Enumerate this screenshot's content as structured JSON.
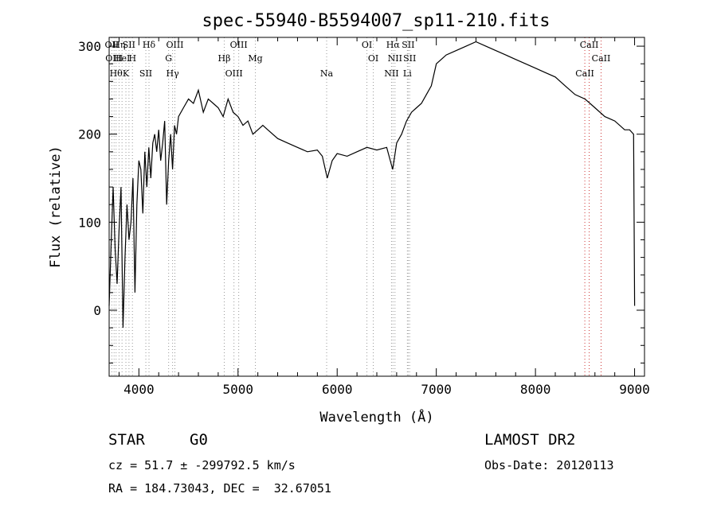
{
  "chart_data": {
    "type": "line",
    "title": "spec-55940-B5594007_sp11-210.fits",
    "xlabel": "Wavelength (Å)",
    "ylabel": "Flux (relative)",
    "xlim": [
      3700,
      9100
    ],
    "ylim": [
      -75,
      310
    ],
    "xticks": [
      4000,
      5000,
      6000,
      7000,
      8000,
      9000
    ],
    "yticks": [
      0,
      100,
      200,
      300
    ],
    "grid": false,
    "series": [
      {
        "x": [
          3700,
          3720,
          3740,
          3760,
          3780,
          3800,
          3820,
          3840,
          3860,
          3880,
          3900,
          3920,
          3940,
          3960,
          3980,
          4000,
          4020,
          4040,
          4060,
          4080,
          4100,
          4120,
          4140,
          4160,
          4180,
          4200,
          4220,
          4240,
          4260,
          4280,
          4300,
          4320,
          4340,
          4360,
          4380,
          4400,
          4450,
          4500,
          4550,
          4600,
          4650,
          4700,
          4750,
          4800,
          4850,
          4900,
          4950,
          5000,
          5050,
          5100,
          5150,
          5200,
          5250,
          5300,
          5400,
          5500,
          5600,
          5700,
          5800,
          5850,
          5900,
          5950,
          6000,
          6100,
          6200,
          6300,
          6400,
          6500,
          6560,
          6600,
          6650,
          6700,
          6750,
          6800,
          6850,
          6900,
          6950,
          7000,
          7050,
          7100,
          7200,
          7300,
          7400,
          7500,
          7600,
          7700,
          7800,
          7900,
          8000,
          8100,
          8200,
          8300,
          8400,
          8500,
          8550,
          8600,
          8700,
          8800,
          8900,
          8950,
          8990,
          9000
        ],
        "values": [
          5,
          75,
          140,
          70,
          30,
          90,
          140,
          -20,
          60,
          120,
          80,
          100,
          150,
          20,
          120,
          170,
          160,
          110,
          180,
          140,
          185,
          150,
          190,
          200,
          180,
          205,
          170,
          190,
          215,
          120,
          170,
          200,
          160,
          210,
          200,
          220,
          230,
          240,
          235,
          250,
          225,
          240,
          235,
          230,
          220,
          240,
          225,
          220,
          210,
          215,
          200,
          205,
          210,
          205,
          195,
          190,
          185,
          180,
          182,
          175,
          150,
          170,
          178,
          175,
          180,
          185,
          182,
          185,
          160,
          190,
          200,
          215,
          225,
          230,
          235,
          245,
          255,
          280,
          285,
          290,
          295,
          300,
          305,
          300,
          295,
          290,
          285,
          280,
          275,
          270,
          265,
          255,
          245,
          240,
          235,
          230,
          220,
          215,
          205,
          205,
          200,
          5
        ]
      }
    ],
    "spectral_lines": [
      {
        "wavelength": 3727,
        "label": "OII",
        "color": "#999999"
      },
      {
        "wavelength": 3750,
        "label": "OIII",
        "color": "#999999"
      },
      {
        "wavelength": 3770,
        "label": "Hθ",
        "color": "#999999"
      },
      {
        "wavelength": 3800,
        "label": "Hη",
        "color": "#999999"
      },
      {
        "wavelength": 3830,
        "label": "HeI",
        "color": "#999999"
      },
      {
        "wavelength": 3869,
        "label": "K",
        "color": "#999999"
      },
      {
        "wavelength": 3900,
        "label": "SII",
        "color": "#999999"
      },
      {
        "wavelength": 3935,
        "label": "H",
        "color": "#999999"
      },
      {
        "wavelength": 4070,
        "label": "SII",
        "color": "#999999"
      },
      {
        "wavelength": 4102,
        "label": "Hδ",
        "color": "#999999"
      },
      {
        "wavelength": 4300,
        "label": "G",
        "color": "#999999"
      },
      {
        "wavelength": 4340,
        "label": "Hγ",
        "color": "#999999"
      },
      {
        "wavelength": 4363,
        "label": "OIII",
        "color": "#999999"
      },
      {
        "wavelength": 4861,
        "label": "Hβ",
        "color": "#999999"
      },
      {
        "wavelength": 4959,
        "label": "OIII",
        "color": "#999999"
      },
      {
        "wavelength": 5007,
        "label": "OIII",
        "color": "#999999"
      },
      {
        "wavelength": 5175,
        "label": "Mg",
        "color": "#999999"
      },
      {
        "wavelength": 5894,
        "label": "Na",
        "color": "#999999"
      },
      {
        "wavelength": 6300,
        "label": "OI",
        "color": "#999999"
      },
      {
        "wavelength": 6364,
        "label": "OI",
        "color": "#999999"
      },
      {
        "wavelength": 6548,
        "label": "NII",
        "color": "#999999"
      },
      {
        "wavelength": 6563,
        "label": "Hα",
        "color": "#999999"
      },
      {
        "wavelength": 6583,
        "label": "NII",
        "color": "#999999"
      },
      {
        "wavelength": 6708,
        "label": "Li",
        "color": "#999999"
      },
      {
        "wavelength": 6716,
        "label": "SII",
        "color": "#999999"
      },
      {
        "wavelength": 6731,
        "label": "SII",
        "color": "#999999"
      },
      {
        "wavelength": 8498,
        "label": "CaII",
        "color": "#cc3333"
      },
      {
        "wavelength": 8542,
        "label": "CaII",
        "color": "#cc3333"
      },
      {
        "wavelength": 8662,
        "label": "CaII",
        "color": "#cc3333"
      }
    ]
  },
  "info": {
    "class": "STAR",
    "subclass": "G0",
    "survey": "LAMOST DR2",
    "cz": "cz = 51.7 ± -299792.5 km/s",
    "obs_date": "Obs-Date: 20120113",
    "coords": "RA = 184.73043, DEC =  32.67051"
  }
}
